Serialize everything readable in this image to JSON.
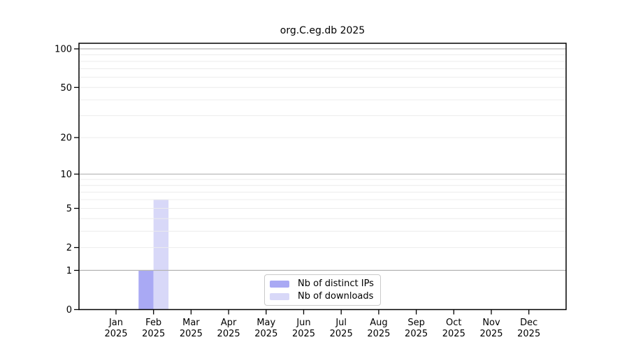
{
  "chart_data": {
    "type": "bar",
    "title": "org.C.eg.db 2025",
    "categories": [
      "Jan",
      "Feb",
      "Mar",
      "Apr",
      "May",
      "Jun",
      "Jul",
      "Aug",
      "Sep",
      "Oct",
      "Nov",
      "Dec"
    ],
    "category_year": "2025",
    "series": [
      {
        "name": "Nb of distinct IPs",
        "color": "#a9a9f4",
        "values": [
          0,
          1,
          0,
          0,
          0,
          0,
          0,
          0,
          0,
          0,
          0,
          0
        ]
      },
      {
        "name": "Nb of downloads",
        "color": "#d8d8f8",
        "values": [
          0,
          6,
          0,
          0,
          0,
          0,
          0,
          0,
          0,
          0,
          0,
          0
        ]
      }
    ],
    "yscale": "log1p",
    "yticks": [
      0,
      1,
      2,
      5,
      10,
      20,
      50,
      100
    ],
    "ylim": [
      0,
      100
    ],
    "grid": {
      "orientation": "horizontal",
      "major_values": [
        1,
        10,
        100
      ],
      "minor_values": [
        2,
        3,
        4,
        5,
        6,
        7,
        8,
        9,
        20,
        30,
        40,
        50,
        60,
        70,
        80,
        90
      ],
      "major_color": "#b3b3b3",
      "minor_color": "#ececec"
    },
    "legend": {
      "position": "bottom-center"
    }
  },
  "colors": {
    "background": "#ffffff",
    "spine": "#000000",
    "tick_text": "#000000",
    "legend_border": "#c9c9c9"
  }
}
